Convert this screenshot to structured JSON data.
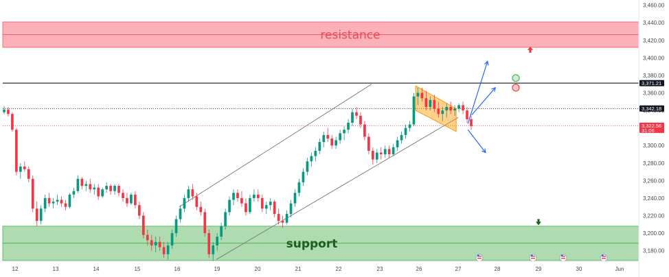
{
  "chart_data": {
    "type": "candlestick",
    "y_axis": {
      "side": "right",
      "range": [
        3168,
        3466
      ],
      "ticks": [
        "3,180.00",
        "3,200.00",
        "3,220.00",
        "3,240.00",
        "3,260.00",
        "3,280.00",
        "3,300.00",
        "3,320.00",
        "3,340.00",
        "3,360.00",
        "3,380.00",
        "3,400.00",
        "3,420.00",
        "3,440.00",
        "3,460.00"
      ]
    },
    "x_axis": {
      "ticks": [
        "12",
        "13",
        "14",
        "15",
        "16",
        "19",
        "20",
        "21",
        "22",
        "23",
        "26",
        "27",
        "28",
        "29",
        "30",
        "Jun"
      ]
    },
    "price_tags": [
      {
        "value": 3371.21,
        "text": "3,371.21",
        "color": "#131722",
        "line": "solid"
      },
      {
        "value": 3342.18,
        "text": "3,342.18",
        "color": "#131722",
        "line": "dotted"
      },
      {
        "value": 3322.56,
        "text": "3,322.56",
        "sub": "31:06",
        "color": "#f23645",
        "line": "dotted"
      }
    ],
    "zones": [
      {
        "name": "resistance",
        "from": 3412,
        "to": 3441,
        "color": "#f7525f"
      },
      {
        "name": "support",
        "from": 3169,
        "to": 3208,
        "color": "#4caf50"
      }
    ],
    "candles": [
      [
        3338,
        3345,
        3336,
        3341
      ],
      [
        3341,
        3344,
        3333,
        3336
      ],
      [
        3336,
        3338,
        3316,
        3318
      ],
      [
        3318,
        3320,
        3266,
        3270
      ],
      [
        3270,
        3280,
        3262,
        3276
      ],
      [
        3276,
        3282,
        3270,
        3273
      ],
      [
        3273,
        3276,
        3258,
        3262
      ],
      [
        3262,
        3266,
        3224,
        3228
      ],
      [
        3228,
        3236,
        3208,
        3214
      ],
      [
        3214,
        3232,
        3210,
        3228
      ],
      [
        3228,
        3244,
        3224,
        3240
      ],
      [
        3240,
        3246,
        3230,
        3234
      ],
      [
        3234,
        3240,
        3228,
        3236
      ],
      [
        3236,
        3244,
        3232,
        3238
      ],
      [
        3238,
        3242,
        3230,
        3234
      ],
      [
        3234,
        3238,
        3226,
        3230
      ],
      [
        3230,
        3246,
        3228,
        3244
      ],
      [
        3244,
        3252,
        3240,
        3248
      ],
      [
        3248,
        3266,
        3246,
        3262
      ],
      [
        3262,
        3264,
        3250,
        3254
      ],
      [
        3254,
        3260,
        3248,
        3256
      ],
      [
        3256,
        3262,
        3246,
        3250
      ],
      [
        3250,
        3256,
        3244,
        3252
      ],
      [
        3252,
        3256,
        3238,
        3242
      ],
      [
        3242,
        3252,
        3240,
        3250
      ],
      [
        3250,
        3258,
        3246,
        3254
      ],
      [
        3254,
        3256,
        3244,
        3248
      ],
      [
        3248,
        3256,
        3244,
        3254
      ],
      [
        3254,
        3256,
        3242,
        3246
      ],
      [
        3246,
        3250,
        3236,
        3240
      ],
      [
        3240,
        3246,
        3230,
        3234
      ],
      [
        3234,
        3246,
        3232,
        3244
      ],
      [
        3244,
        3248,
        3228,
        3232
      ],
      [
        3232,
        3236,
        3216,
        3220
      ],
      [
        3220,
        3224,
        3194,
        3198
      ],
      [
        3198,
        3204,
        3186,
        3192
      ],
      [
        3192,
        3198,
        3180,
        3186
      ],
      [
        3186,
        3196,
        3178,
        3190
      ],
      [
        3190,
        3196,
        3180,
        3184
      ],
      [
        3184,
        3190,
        3172,
        3176
      ],
      [
        3176,
        3190,
        3170,
        3186
      ],
      [
        3186,
        3204,
        3182,
        3200
      ],
      [
        3200,
        3220,
        3196,
        3216
      ],
      [
        3216,
        3232,
        3212,
        3228
      ],
      [
        3228,
        3244,
        3224,
        3240
      ],
      [
        3240,
        3254,
        3236,
        3250
      ],
      [
        3250,
        3256,
        3238,
        3242
      ],
      [
        3242,
        3246,
        3226,
        3230
      ],
      [
        3230,
        3236,
        3220,
        3224
      ],
      [
        3224,
        3228,
        3196,
        3200
      ],
      [
        3200,
        3204,
        3172,
        3176
      ],
      [
        3176,
        3190,
        3168,
        3186
      ],
      [
        3186,
        3200,
        3180,
        3196
      ],
      [
        3196,
        3212,
        3192,
        3208
      ],
      [
        3208,
        3228,
        3204,
        3224
      ],
      [
        3224,
        3242,
        3220,
        3238
      ],
      [
        3238,
        3250,
        3232,
        3246
      ],
      [
        3246,
        3250,
        3236,
        3240
      ],
      [
        3240,
        3248,
        3230,
        3234
      ],
      [
        3234,
        3240,
        3220,
        3224
      ],
      [
        3224,
        3244,
        3222,
        3240
      ],
      [
        3240,
        3250,
        3236,
        3244
      ],
      [
        3244,
        3250,
        3236,
        3240
      ],
      [
        3240,
        3244,
        3224,
        3228
      ],
      [
        3228,
        3236,
        3222,
        3232
      ],
      [
        3232,
        3240,
        3226,
        3236
      ],
      [
        3236,
        3238,
        3218,
        3222
      ],
      [
        3222,
        3228,
        3210,
        3214
      ],
      [
        3214,
        3220,
        3206,
        3212
      ],
      [
        3212,
        3226,
        3210,
        3222
      ],
      [
        3222,
        3238,
        3218,
        3234
      ],
      [
        3234,
        3250,
        3230,
        3246
      ],
      [
        3246,
        3262,
        3242,
        3258
      ],
      [
        3258,
        3274,
        3254,
        3270
      ],
      [
        3270,
        3286,
        3266,
        3282
      ],
      [
        3282,
        3292,
        3276,
        3288
      ],
      [
        3288,
        3298,
        3282,
        3294
      ],
      [
        3294,
        3308,
        3290,
        3304
      ],
      [
        3304,
        3316,
        3298,
        3312
      ],
      [
        3312,
        3320,
        3304,
        3308
      ],
      [
        3308,
        3312,
        3296,
        3300
      ],
      [
        3300,
        3310,
        3296,
        3306
      ],
      [
        3306,
        3318,
        3302,
        3314
      ],
      [
        3314,
        3322,
        3306,
        3318
      ],
      [
        3318,
        3330,
        3314,
        3326
      ],
      [
        3326,
        3342,
        3322,
        3338
      ],
      [
        3338,
        3344,
        3330,
        3334
      ],
      [
        3334,
        3338,
        3320,
        3324
      ],
      [
        3324,
        3328,
        3306,
        3310
      ],
      [
        3310,
        3314,
        3290,
        3294
      ],
      [
        3294,
        3298,
        3278,
        3284
      ],
      [
        3284,
        3296,
        3280,
        3292
      ],
      [
        3292,
        3298,
        3284,
        3290
      ],
      [
        3290,
        3300,
        3286,
        3296
      ],
      [
        3296,
        3300,
        3286,
        3290
      ],
      [
        3290,
        3302,
        3288,
        3298
      ],
      [
        3298,
        3310,
        3294,
        3306
      ],
      [
        3306,
        3316,
        3302,
        3312
      ],
      [
        3312,
        3324,
        3308,
        3320
      ],
      [
        3320,
        3328,
        3316,
        3324
      ],
      [
        3324,
        3360,
        3322,
        3356
      ],
      [
        3356,
        3366,
        3346,
        3360
      ],
      [
        3360,
        3366,
        3350,
        3354
      ],
      [
        3354,
        3362,
        3340,
        3344
      ],
      [
        3344,
        3356,
        3340,
        3352
      ],
      [
        3352,
        3358,
        3338,
        3342
      ],
      [
        3342,
        3350,
        3332,
        3336
      ],
      [
        3336,
        3344,
        3328,
        3340
      ],
      [
        3340,
        3348,
        3332,
        3344
      ],
      [
        3344,
        3350,
        3336,
        3340
      ],
      [
        3340,
        3346,
        3334,
        3342
      ],
      [
        3342,
        3348,
        3338,
        3346
      ],
      [
        3346,
        3350,
        3336,
        3340
      ],
      [
        3340,
        3344,
        3326,
        3330
      ],
      [
        3330,
        3334,
        3318,
        3322
      ]
    ],
    "channel": {
      "upper": [
        [
          16.15,
          3230
        ],
        [
          22.8,
          3370
        ]
      ],
      "lower": [
        [
          18.95,
          3170
        ],
        [
          27.0,
          3332
        ]
      ]
    },
    "flag_box": [
      [
        25.75,
        3368
      ],
      [
        26.95,
        3342
      ],
      [
        26.95,
        3316
      ],
      [
        25.75,
        3340
      ]
    ],
    "horizontal_lines": [
      3371.21,
      3342.18,
      3322.56
    ],
    "projections": [
      {
        "from": [
          27.25,
          3325
        ],
        "to": [
          27.75,
          3396
        ]
      },
      {
        "from": [
          27.35,
          3335
        ],
        "to": [
          27.95,
          3366
        ]
      },
      {
        "from": [
          27.25,
          3318
        ],
        "to": [
          27.7,
          3292
        ]
      }
    ],
    "markers": [
      {
        "type": "circle",
        "at": [
          28.45,
          3377
        ],
        "color": "#4caf50"
      },
      {
        "type": "circle",
        "at": [
          28.45,
          3366
        ],
        "color": "#f23645"
      },
      {
        "type": "arrow-up",
        "at": [
          28.8,
          3409
        ],
        "color": "#f23645"
      },
      {
        "type": "arrow-down",
        "at": [
          29.0,
          3213
        ],
        "color": "#1b5e20"
      }
    ]
  }
}
